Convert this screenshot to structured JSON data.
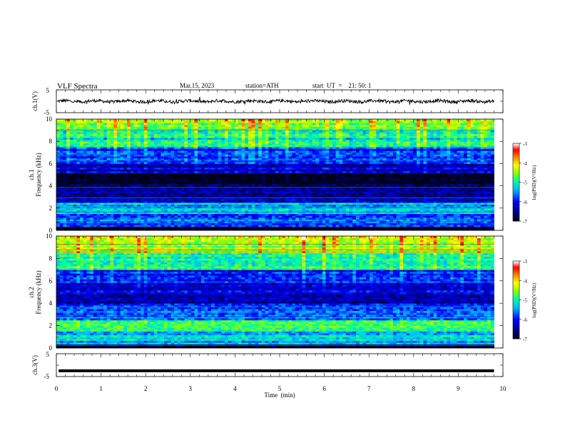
{
  "header": {
    "title": "VLF  Spectra",
    "date": "Mar.15, 2023",
    "station": "station=ATH",
    "start_ut": "start  UT  =    21: 50: 1"
  },
  "chart_data": [
    {
      "type": "line",
      "panel": "ch1-waveform",
      "ylabel": "ch.1(V)",
      "x_range": [
        0,
        10
      ],
      "ylim": [
        -5,
        5
      ],
      "yticks": [
        "5",
        "-5"
      ],
      "series_note": "noisy waveform centered near 0 V, amplitude about ±1 V, ends at ~9.8 min"
    },
    {
      "type": "heatmap",
      "panel": "ch1-spectrogram",
      "ylabel": "Frequency  (kHz)",
      "channel_label": "ch.1",
      "x_range": [
        0,
        10
      ],
      "data_end_min": 9.8,
      "ylim": [
        0,
        10
      ],
      "yticks": [
        "0",
        "2",
        "4",
        "6",
        "8",
        "10"
      ],
      "colorbar": {
        "label": "log(PSD)(V²/Hz)",
        "range": [
          -7,
          -3
        ],
        "ticks": [
          "-3",
          "-4",
          "-5",
          "-6",
          "-7"
        ]
      },
      "colormap": [
        "#000000",
        "#00008b",
        "#0000ff",
        "#00bfff",
        "#00ff80",
        "#aaff00",
        "#ffff00",
        "#ff8000",
        "#ff0000",
        "#ffffff"
      ],
      "band_levels_kHz": [
        {
          "f": [
            9.0,
            10.0
          ],
          "level": -4.7
        },
        {
          "f": [
            7.5,
            9.0
          ],
          "level": -5.2
        },
        {
          "f": [
            6.0,
            7.5
          ],
          "level": -6.0
        },
        {
          "f": [
            5.2,
            6.0
          ],
          "level": -6.3
        },
        {
          "f": [
            3.8,
            5.2
          ],
          "level": -6.9
        },
        {
          "f": [
            2.5,
            3.8
          ],
          "level": -6.4
        },
        {
          "f": [
            1.5,
            2.5
          ],
          "level": -5.4
        },
        {
          "f": [
            0.3,
            1.5
          ],
          "level": -5.7
        },
        {
          "f": [
            0.0,
            0.3
          ],
          "level": -7.0
        }
      ]
    },
    {
      "type": "heatmap",
      "panel": "ch2-spectrogram",
      "ylabel": "Frequency  (kHz)",
      "channel_label": "ch.2",
      "x_range": [
        0,
        10
      ],
      "data_end_min": 9.8,
      "ylim": [
        0,
        10
      ],
      "yticks": [
        "0",
        "2",
        "4",
        "6",
        "8",
        "10"
      ],
      "colorbar": {
        "label": "log(PSD)(V²/Hz)",
        "range": [
          -7,
          -3
        ],
        "ticks": [
          "-3",
          "-4",
          "-5",
          "-6",
          "-7"
        ]
      },
      "colormap": [
        "#000000",
        "#00008b",
        "#0000ff",
        "#00bfff",
        "#00ff80",
        "#aaff00",
        "#ffff00",
        "#ff8000",
        "#ff0000",
        "#ffffff"
      ],
      "band_levels_kHz": [
        {
          "f": [
            8.5,
            10.0
          ],
          "level": -4.5
        },
        {
          "f": [
            7.0,
            8.5
          ],
          "level": -5.0
        },
        {
          "f": [
            5.0,
            7.0
          ],
          "level": -6.1
        },
        {
          "f": [
            4.0,
            5.0
          ],
          "level": -6.3
        },
        {
          "f": [
            2.5,
            4.0
          ],
          "level": -5.7
        },
        {
          "f": [
            1.5,
            2.5
          ],
          "level": -4.8
        },
        {
          "f": [
            0.3,
            1.5
          ],
          "level": -5.3
        },
        {
          "f": [
            0.0,
            0.3
          ],
          "level": -7.0
        }
      ]
    },
    {
      "type": "line",
      "panel": "ch3-waveform",
      "ylabel": "ch.3(V)",
      "x_range": [
        0,
        10
      ],
      "ylim": [
        -5,
        5
      ],
      "yticks": [
        "5",
        "-5"
      ],
      "series_note": "flat thick trace near -2.5 V, ends at ~9.8 min"
    }
  ],
  "xaxis": {
    "label": "Time  (min)",
    "ticks": [
      "0",
      "1",
      "2",
      "3",
      "4",
      "5",
      "6",
      "7",
      "8",
      "9",
      "10"
    ]
  }
}
